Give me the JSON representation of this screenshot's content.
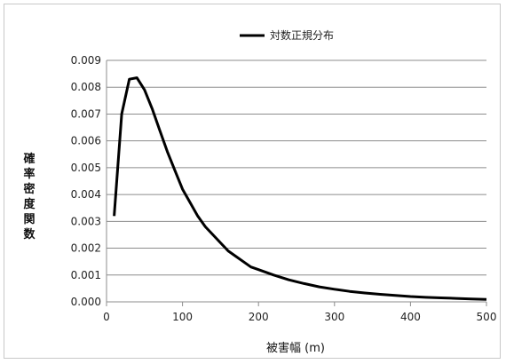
{
  "chart_data": {
    "type": "line",
    "title": "",
    "xlabel": "被害幅 (m)",
    "ylabel": "確率密度関数",
    "xlim": [
      0,
      500
    ],
    "ylim": [
      0,
      0.009
    ],
    "x_ticks": [
      0,
      100,
      200,
      300,
      400,
      500
    ],
    "x_tick_labels": [
      "0",
      "100",
      "200",
      "300",
      "400",
      "500"
    ],
    "y_ticks": [
      0,
      0.001,
      0.002,
      0.003,
      0.004,
      0.005,
      0.006,
      0.007,
      0.008,
      0.009
    ],
    "y_tick_labels": [
      "0.000",
      "0.001",
      "0.002",
      "0.003",
      "0.004",
      "0.005",
      "0.006",
      "0.007",
      "0.008",
      "0.009"
    ],
    "grid": "horizontal",
    "legend_position": "top-right",
    "series": [
      {
        "name": "対数正規分布",
        "color": "#000000",
        "x": [
          10,
          20,
          30,
          40,
          50,
          60,
          70,
          80,
          90,
          100,
          110,
          120,
          130,
          140,
          150,
          160,
          170,
          180,
          190,
          200,
          220,
          240,
          260,
          280,
          300,
          320,
          340,
          360,
          380,
          400,
          420,
          440,
          460,
          480,
          500
        ],
        "y": [
          0.0032,
          0.007,
          0.0083,
          0.00835,
          0.0079,
          0.0072,
          0.0064,
          0.0056,
          0.0049,
          0.0042,
          0.0037,
          0.0032,
          0.0028,
          0.0025,
          0.0022,
          0.0019,
          0.0017,
          0.0015,
          0.0013,
          0.0012,
          0.001,
          0.00082,
          0.00068,
          0.00056,
          0.00047,
          0.00039,
          0.00033,
          0.00028,
          0.00024,
          0.0002,
          0.00017,
          0.00015,
          0.00013,
          0.00011,
          9e-05
        ]
      }
    ]
  }
}
